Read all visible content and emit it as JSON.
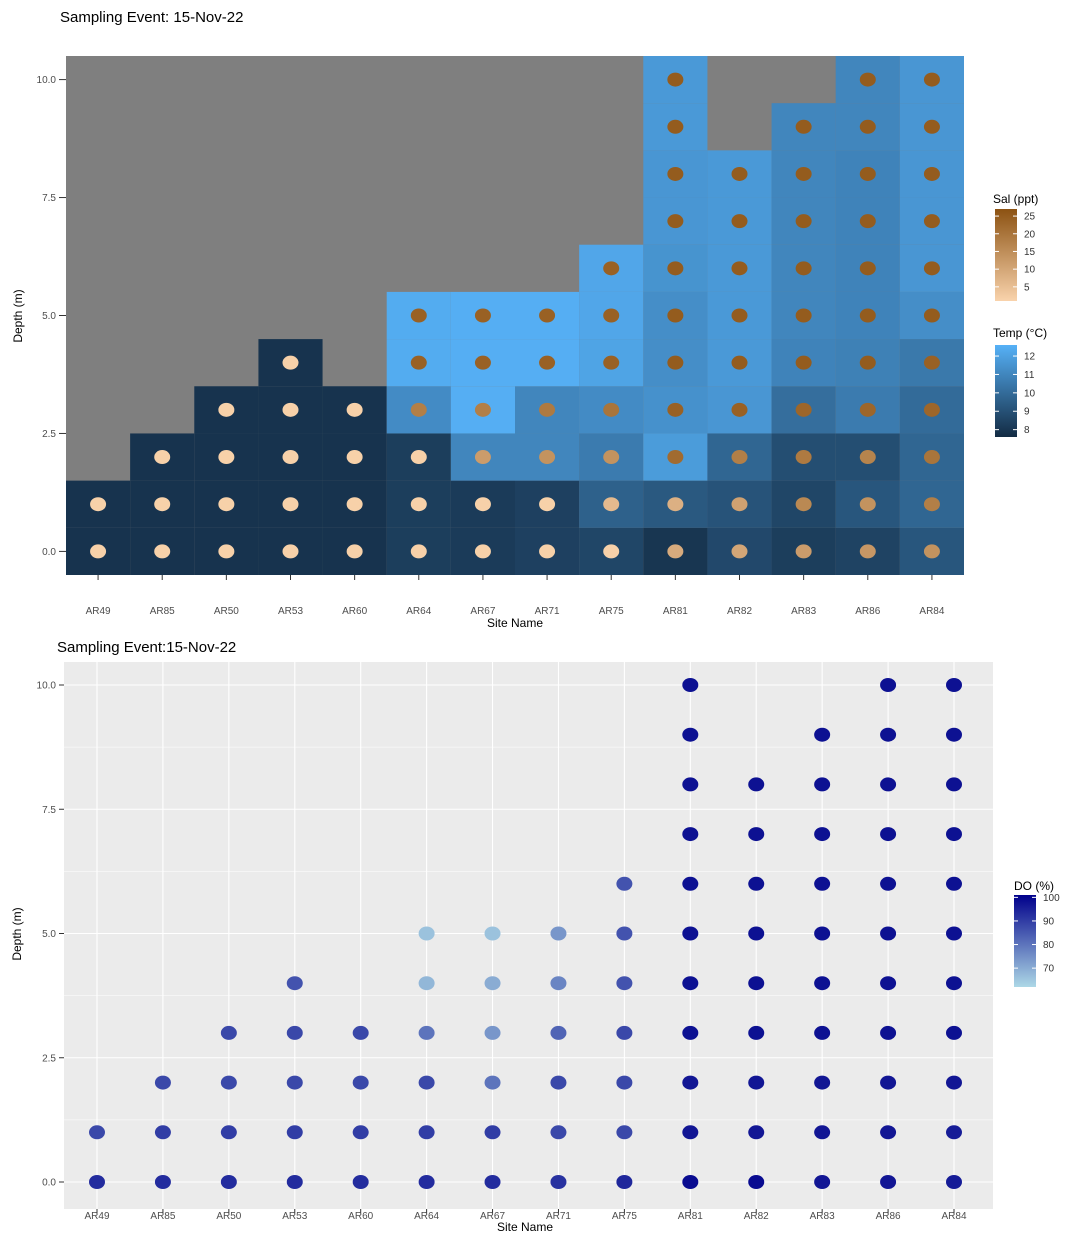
{
  "chart_data": [
    {
      "type": "heatmap",
      "title": "Sampling Event: 15-Nov-22",
      "xlabel": "Site Name",
      "ylabel": "Depth (m)",
      "categories": [
        "AR49",
        "AR85",
        "AR50",
        "AR53",
        "AR60",
        "AR64",
        "AR67",
        "AR71",
        "AR75",
        "AR81",
        "AR82",
        "AR83",
        "AR86",
        "AR84"
      ],
      "ylim": [
        -0.5,
        10.5
      ],
      "yticks": [
        "0.0",
        "2.5",
        "5.0",
        "7.5",
        "10.0"
      ],
      "ytick_values": [
        0,
        2.5,
        5,
        7.5,
        10
      ],
      "panel_background": "#7f7f7f",
      "fill_legend": {
        "title": "Temp (°C)",
        "ticks": [
          "12",
          "11",
          "10",
          "9",
          "8"
        ],
        "tick_values": [
          12,
          11,
          10,
          9,
          8
        ],
        "range": [
          7.6,
          12.6
        ],
        "colors": [
          "#132b43",
          "#56b1f7"
        ]
      },
      "point_legend": {
        "title": "Sal (ppt)",
        "ticks": [
          "25",
          "20",
          "15",
          "10",
          "5"
        ],
        "tick_values": [
          25,
          20,
          15,
          10,
          5
        ],
        "range": [
          1,
          27
        ],
        "colors": [
          "#f9d3ac",
          "#8c5212"
        ]
      },
      "site_depths": [
        [
          0,
          1
        ],
        [
          0,
          1,
          2
        ],
        [
          0,
          1,
          2,
          3
        ],
        [
          0,
          1,
          2,
          3,
          4
        ],
        [
          0,
          1,
          2,
          3
        ],
        [
          0,
          1,
          2,
          3,
          4,
          5
        ],
        [
          0,
          1,
          2,
          3,
          4,
          5
        ],
        [
          0,
          1,
          2,
          3,
          4,
          5
        ],
        [
          0,
          1,
          2,
          3,
          4,
          5,
          6
        ],
        [
          0,
          1,
          2,
          3,
          4,
          5,
          6,
          7,
          8,
          9,
          10
        ],
        [
          0,
          1,
          2,
          3,
          4,
          5,
          6,
          7,
          8
        ],
        [
          0,
          1,
          2,
          3,
          4,
          5,
          6,
          7,
          8,
          9
        ],
        [
          0,
          1,
          2,
          3,
          4,
          5,
          6,
          7,
          8,
          9,
          10
        ],
        [
          0,
          1,
          2,
          3,
          4,
          5,
          6,
          7,
          8,
          9,
          10
        ]
      ],
      "temp": [
        [
          7.9,
          7.9
        ],
        [
          7.9,
          7.9,
          7.9
        ],
        [
          7.9,
          7.9,
          7.9,
          7.9
        ],
        [
          7.9,
          7.9,
          7.9,
          7.9,
          7.9
        ],
        [
          7.9,
          7.9,
          7.9,
          7.9
        ],
        [
          8.3,
          8.3,
          8.3,
          11.2,
          12.4,
          12.4
        ],
        [
          8.2,
          8.2,
          11.0,
          12.5,
          12.5,
          12.5
        ],
        [
          8.4,
          8.4,
          11.0,
          11.0,
          12.5,
          12.5
        ],
        [
          8.6,
          9.6,
          10.6,
          11.2,
          12.1,
          12.2,
          12.2
        ],
        [
          8.0,
          9.3,
          11.8,
          11.4,
          11.3,
          11.3,
          11.5,
          11.6,
          11.6,
          11.7,
          11.7
        ],
        [
          8.7,
          9.1,
          9.8,
          11.6,
          11.7,
          11.7,
          11.7,
          11.7,
          11.7
        ],
        [
          8.3,
          8.6,
          8.9,
          10.1,
          10.9,
          11.0,
          11.0,
          11.0,
          11.0,
          11.0
        ],
        [
          8.5,
          9.2,
          8.9,
          10.6,
          10.8,
          10.9,
          10.9,
          10.9,
          10.9,
          11.0,
          11.0
        ],
        [
          9.2,
          9.8,
          9.8,
          10.0,
          10.5,
          11.3,
          11.6,
          11.6,
          11.6,
          11.6,
          11.6
        ]
      ],
      "sal": [
        [
          1.5,
          1.5
        ],
        [
          1.5,
          1.5,
          1.5
        ],
        [
          1.5,
          1.5,
          1.5,
          1.5
        ],
        [
          1.5,
          1.5,
          1.5,
          1.5,
          1.5
        ],
        [
          1.5,
          1.5,
          1.5,
          1.5
        ],
        [
          1.5,
          1.5,
          1.5,
          18,
          24,
          24
        ],
        [
          1.5,
          1.5,
          12,
          18,
          24,
          24
        ],
        [
          1.5,
          1.5,
          14,
          19,
          24,
          24
        ],
        [
          1.5,
          6,
          14,
          20,
          24,
          24,
          24
        ],
        [
          9,
          8,
          22,
          24,
          25,
          25,
          25,
          25,
          25,
          25,
          25
        ],
        [
          10,
          11,
          18,
          24,
          25,
          25,
          25,
          25,
          25
        ],
        [
          12,
          16,
          19,
          23,
          25,
          25,
          25,
          25,
          25,
          25
        ],
        [
          13,
          14,
          17,
          23,
          25,
          25,
          25,
          25,
          25,
          25,
          25
        ],
        [
          14,
          18,
          20,
          23,
          24,
          25,
          25,
          25,
          25,
          25,
          25
        ]
      ]
    },
    {
      "type": "scatter",
      "title": "Sampling Event:15-Nov-22",
      "xlabel": "Site Name",
      "ylabel": "Depth (m)",
      "categories": [
        "AR49",
        "AR85",
        "AR50",
        "AR53",
        "AR60",
        "AR64",
        "AR67",
        "AR71",
        "AR75",
        "AR81",
        "AR82",
        "AR83",
        "AR86",
        "AR84"
      ],
      "ylim": [
        -0.5,
        10.5
      ],
      "yticks": [
        "0.0",
        "2.5",
        "5.0",
        "7.5",
        "10.0"
      ],
      "ytick_values": [
        0,
        2.5,
        5,
        7.5,
        10
      ],
      "panel_background": "#ebebeb",
      "color_legend": {
        "title": "DO (%)",
        "ticks": [
          "100",
          "90",
          "80",
          "70"
        ],
        "tick_values": [
          100,
          90,
          80,
          70
        ],
        "range": [
          62,
          101
        ],
        "colors": [
          "#add8e6",
          "#00008b"
        ]
      },
      "site_depths": [
        [
          0,
          1
        ],
        [
          0,
          1,
          2
        ],
        [
          0,
          1,
          2,
          3
        ],
        [
          0,
          1,
          2,
          3,
          4
        ],
        [
          0,
          1,
          2,
          3
        ],
        [
          0,
          1,
          2,
          3,
          4,
          5
        ],
        [
          0,
          1,
          2,
          3,
          4,
          5
        ],
        [
          0,
          1,
          2,
          3,
          4,
          5
        ],
        [
          0,
          1,
          2,
          3,
          4,
          5,
          6
        ],
        [
          0,
          1,
          2,
          3,
          4,
          5,
          6,
          7,
          8,
          9,
          10
        ],
        [
          0,
          1,
          2,
          3,
          4,
          5,
          6,
          7,
          8
        ],
        [
          0,
          1,
          2,
          3,
          4,
          5,
          6,
          7,
          8,
          9
        ],
        [
          0,
          1,
          2,
          3,
          4,
          5,
          6,
          7,
          8,
          9,
          10
        ],
        [
          0,
          1,
          2,
          3,
          4,
          5,
          6,
          7,
          8,
          9,
          10
        ]
      ],
      "do": [
        [
          93,
          88
        ],
        [
          93,
          90,
          88
        ],
        [
          93,
          90,
          88,
          88
        ],
        [
          93,
          90,
          88,
          88,
          86
        ],
        [
          93,
          90,
          88,
          88
        ],
        [
          93,
          90,
          88,
          80,
          68,
          66
        ],
        [
          93,
          90,
          80,
          74,
          70,
          66
        ],
        [
          92,
          88,
          88,
          83,
          77,
          74
        ],
        [
          94,
          88,
          88,
          88,
          86,
          86,
          86
        ],
        [
          99,
          97,
          97,
          98,
          98,
          98,
          98,
          98,
          98,
          98,
          98
        ],
        [
          99,
          97,
          97,
          98,
          98,
          98,
          98,
          98,
          98
        ],
        [
          97,
          97,
          97,
          98,
          98,
          98,
          98,
          98,
          98,
          98
        ],
        [
          97,
          97,
          97,
          98,
          98,
          98,
          98,
          98,
          98,
          98,
          98
        ],
        [
          96,
          96,
          97,
          98,
          98,
          98,
          98,
          98,
          98,
          98,
          98
        ]
      ]
    }
  ]
}
